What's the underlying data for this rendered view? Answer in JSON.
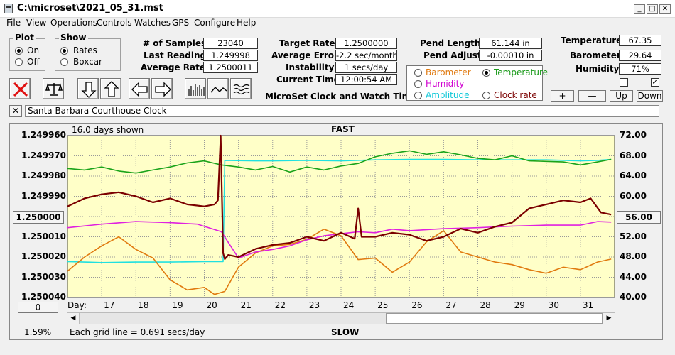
{
  "window": {
    "title": "C:\\microset\\2021_05_31.mst"
  },
  "menu": [
    "File",
    "View",
    "Operations",
    "Controls",
    "Watches",
    "GPS",
    "Configure",
    "Help"
  ],
  "plot_group": {
    "title": "Plot",
    "on": "On",
    "off": "Off",
    "selected": "On"
  },
  "show_group": {
    "title": "Show",
    "rates": "Rates",
    "boxcar": "Boxcar",
    "selected": "Rates"
  },
  "stats": {
    "samples_label": "# of Samples:",
    "samples": "23040",
    "last_label": "Last Reading:",
    "last": "1.249998",
    "avg_label": "Average Rate:",
    "avg": "1.2500011"
  },
  "rates": {
    "target_label": "Target Rate:",
    "target": "1.2500000",
    "error_label": "Average Error:",
    "error": "-2.2 sec/month",
    "instab_label": "Instability:",
    "instab": "1 secs/day",
    "time_label": "Current Time:",
    "time": "12:00:54 AM"
  },
  "app_name": "MicroSet Clock and Watch Timer",
  "pend": {
    "length_label": "Pend Length:",
    "length": "61.144 in",
    "adjust_label": "Pend Adjust:",
    "adjust": "-0.00010 in"
  },
  "sensors": {
    "temp_label": "Temperature:",
    "temp": "67.35",
    "baro_label": "Barometer:",
    "baro": "29.64",
    "hum_label": "Humidity:",
    "hum": "71%"
  },
  "channels": {
    "barometer": "Barometer",
    "humidity": "Humidity",
    "amplitude": "Amplitude",
    "temperature": "Temperature",
    "clock_rate": "Clock rate",
    "selected": "Temperature"
  },
  "scale_buttons": {
    "plus": "+",
    "minus": "—",
    "up": "Up",
    "down": "Down"
  },
  "clock_name": "Santa Barbara Courthouse Clock",
  "colors": {
    "plot_bg": "#ffffc8",
    "rate": "#7b0000",
    "temperature": "#1aa31a",
    "humidity": "#e020e0",
    "barometer": "#e07a10",
    "amplitude": "#20e0e0"
  },
  "chart_data": {
    "type": "line",
    "days_shown": "16.0 days shown",
    "top_label": "FAST",
    "bottom_label": "SLOW",
    "grid_note": "Each grid line = 0.691 secs/day",
    "percent": "1.59%",
    "center_value": "1.250000",
    "right_value": "56.00",
    "x_axis_label": "Day:",
    "x_ticks": [
      "17",
      "18",
      "19",
      "20",
      "21",
      "22",
      "23",
      "24",
      "25",
      "26",
      "27",
      "28",
      "29",
      "30",
      "31"
    ],
    "x_tick_days": [
      17,
      18,
      19,
      20,
      21,
      22,
      23,
      24,
      25,
      26,
      27,
      28,
      29,
      30,
      31
    ],
    "xlim": [
      16.0,
      32.0
    ],
    "y_left_ticks": [
      "1.249960",
      "1.249970",
      "1.249980",
      "1.249990",
      "1.250000",
      "1.250010",
      "1.250020",
      "1.250030",
      "1.250040"
    ],
    "y_left_lim": [
      1.24996,
      1.25004
    ],
    "y_left_reversed": true,
    "y_right_ticks": [
      "72.00",
      "68.00",
      "64.00",
      "60.00",
      "56.00",
      "52.00",
      "48.00",
      "44.00",
      "40.00"
    ],
    "y_right_lim": [
      40,
      72
    ],
    "series": [
      {
        "name": "Clock rate",
        "axis": "left",
        "x": [
          16.0,
          16.5,
          17.0,
          17.5,
          18.0,
          18.5,
          19.0,
          19.5,
          20.0,
          20.3,
          20.4,
          20.48,
          20.55,
          20.6,
          20.7,
          21.0,
          21.5,
          22.0,
          22.5,
          23.0,
          23.5,
          24.0,
          24.4,
          24.5,
          24.6,
          25.0,
          25.5,
          26.0,
          26.5,
          27.0,
          27.5,
          28.0,
          28.5,
          29.0,
          29.5,
          30.0,
          30.5,
          31.0,
          31.3,
          31.6,
          31.9
        ],
        "y": [
          1.249995,
          1.249991,
          1.249989,
          1.249988,
          1.24999,
          1.249993,
          1.249991,
          1.249994,
          1.249995,
          1.249994,
          1.249992,
          1.24996,
          1.250018,
          1.250021,
          1.250019,
          1.25002,
          1.250016,
          1.250014,
          1.250013,
          1.25001,
          1.250012,
          1.250008,
          1.250011,
          1.249996,
          1.25001,
          1.25001,
          1.250008,
          1.250009,
          1.250012,
          1.25001,
          1.250006,
          1.250008,
          1.250005,
          1.250003,
          1.249996,
          1.249994,
          1.249992,
          1.249993,
          1.249991,
          1.249998,
          1.249999
        ]
      },
      {
        "name": "Temperature",
        "axis": "right",
        "x": [
          16.0,
          16.5,
          17.0,
          17.5,
          18.0,
          18.5,
          19.0,
          19.5,
          20.0,
          20.5,
          21.0,
          21.5,
          22.0,
          22.5,
          23.0,
          23.5,
          24.0,
          24.5,
          25.0,
          25.5,
          26.0,
          26.5,
          27.0,
          27.5,
          28.0,
          28.5,
          29.0,
          29.5,
          30.0,
          30.5,
          31.0,
          31.5,
          31.9
        ],
        "y": [
          65.5,
          65.2,
          65.8,
          65.0,
          64.6,
          65.2,
          65.8,
          66.6,
          67.0,
          66.2,
          65.8,
          65.2,
          65.9,
          64.8,
          65.8,
          65.2,
          66.0,
          66.5,
          67.8,
          68.5,
          69.0,
          68.3,
          68.8,
          68.2,
          67.5,
          67.2,
          68.0,
          67.0,
          66.9,
          66.8,
          66.2,
          66.8,
          67.3
        ]
      },
      {
        "name": "Humidity",
        "axis": "right",
        "x": [
          16.0,
          17.0,
          18.0,
          19.0,
          19.8,
          20.5,
          21.0,
          21.5,
          22.0,
          22.5,
          23.0,
          23.5,
          24.0,
          24.5,
          25.0,
          25.5,
          26.0,
          27.0,
          28.0,
          29.0,
          30.0,
          31.0,
          31.5,
          31.9
        ],
        "y": [
          53.8,
          54.5,
          55.0,
          54.8,
          54.5,
          53.0,
          47.8,
          49.0,
          49.5,
          50.2,
          51.4,
          52.2,
          52.6,
          53.0,
          52.8,
          53.5,
          53.2,
          53.6,
          53.8,
          54.1,
          54.3,
          54.3,
          55.0,
          54.9
        ]
      },
      {
        "name": "Barometer",
        "axis": "right",
        "x": [
          16.0,
          16.5,
          17.0,
          17.5,
          18.0,
          18.5,
          19.0,
          19.5,
          20.0,
          20.3,
          20.6,
          21.0,
          21.5,
          22.0,
          22.5,
          23.0,
          23.5,
          24.0,
          24.5,
          25.0,
          25.5,
          26.0,
          26.5,
          27.0,
          27.5,
          28.0,
          28.5,
          29.0,
          29.5,
          30.0,
          30.5,
          31.0,
          31.5,
          31.9
        ],
        "y": [
          45.2,
          48.0,
          50.2,
          52.0,
          49.5,
          47.8,
          43.5,
          41.5,
          42.0,
          40.6,
          41.2,
          46.0,
          48.8,
          50.2,
          50.5,
          51.5,
          53.5,
          52.2,
          47.5,
          47.8,
          45.0,
          47.0,
          51.0,
          53.2,
          49.0,
          48.0,
          47.0,
          46.5,
          45.5,
          44.8,
          46.0,
          45.5,
          47.0,
          47.6
        ]
      },
      {
        "name": "Amplitude",
        "axis": "right",
        "x": [
          16.0,
          17.0,
          18.0,
          19.0,
          20.0,
          20.55,
          20.6,
          21.5,
          22.0,
          23.0,
          24.0,
          25.0,
          26.0,
          27.0,
          28.0,
          29.0,
          30.0,
          31.0,
          31.5,
          31.9
        ],
        "y": [
          47.1,
          46.9,
          47.0,
          47.0,
          47.1,
          47.1,
          67.1,
          67.0,
          67.0,
          67.1,
          67.0,
          67.2,
          67.3,
          67.3,
          67.2,
          67.2,
          67.2,
          67.0,
          67.1,
          67.3
        ]
      }
    ]
  }
}
